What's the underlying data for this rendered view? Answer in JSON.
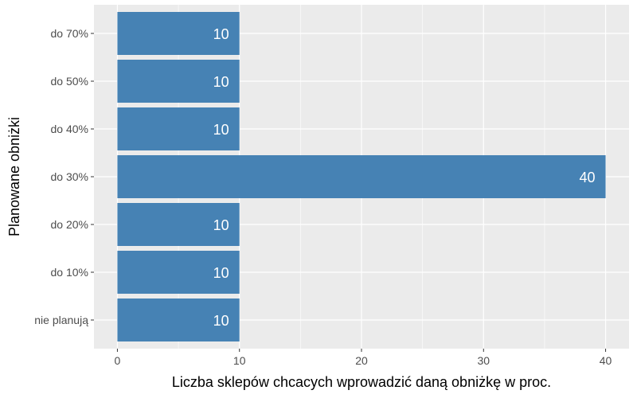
{
  "chart_data": {
    "type": "bar",
    "orientation": "horizontal",
    "categories": [
      "nie planują",
      "do 10%",
      "do 20%",
      "do 30%",
      "do 40%",
      "do 50%",
      "do 70%"
    ],
    "values": [
      10,
      10,
      10,
      40,
      10,
      10,
      10
    ],
    "xlabel": "Liczba sklepów chcacych wprowadzić daną obniżkę w proc.",
    "ylabel": "Planowane obniżki",
    "xlim": [
      0,
      42
    ],
    "xticks": [
      0,
      10,
      20,
      30,
      40
    ],
    "grid": true,
    "colors": {
      "bar": "#4682B4",
      "panel": "#EBEBEB",
      "grid": "#FFFFFF",
      "label": "#FFFFFF"
    }
  }
}
